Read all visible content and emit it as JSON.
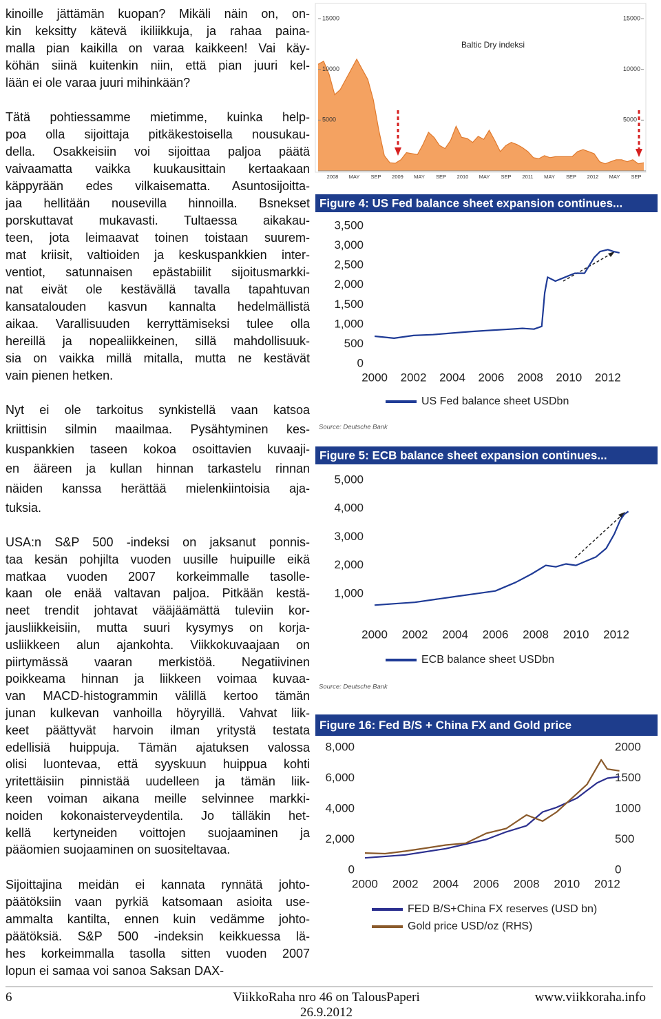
{
  "paragraphs": [
    {
      "lines": [
        "kinoille jättämän kuopan? Mikäli näin on, on-",
        "kin keksitty kätevä ikiliikkuja, ja rahaa paina-",
        "malla pian kaikilla on varaa kaikkeen! Vai käy-",
        "köhän siinä kuitenkin niin, että pian juuri kel-",
        "lään ei ole varaa juuri mihinkään?"
      ]
    },
    {
      "lines": [
        "Tätä pohtiessamme mietimme, kuinka help-",
        "poa olla sijoittaja pitkäkestoisella nousukau-",
        "della. Osakkeisiin voi sijoittaa paljoa päätä",
        "vaivaamatta vaikka kuukausittain kertaakaan",
        "käppyrään edes vilkaisematta. Asuntosijoitta-",
        "jaa hellitään nousevilla hinnoilla. Bsnekset",
        "porskuttavat mukavasti. Tultaessa aikakau-",
        "teen, jota leimaavat toinen toistaan suurem-",
        "mat kriisit, valtioiden ja keskuspankkien inter-",
        "ventiot, satunnaisen epästabiilit sijoitusmarkki-",
        "nat eivät ole kestävällä tavalla tapahtuvan",
        "kansatalouden kasvun kannalta hedelmällistä",
        "aikaa. Varallisuuden kerryttämiseksi tulee olla",
        "hereillä ja nopealiikkeinen, sillä mahdollisuuk-",
        "sia on vaikka millä mitalla, mutta ne kestävät",
        "vain pienen hetken."
      ]
    },
    {
      "lines": [
        "Nyt ei ole tarkoitus synkistellä vaan katsoa",
        "kriittisin silmin maailmaa. Pysähtyminen kes-",
        "kuspankkien taseen kokoa osoittavien kuvaaji-",
        "en ääreen ja kullan hinnan tarkastelu rinnan",
        "näiden kanssa herättää mielenkiintoisia aja-",
        "tuksia."
      ]
    },
    {
      "lines": [
        "USA:n S&P 500 -indeksi on jaksanut ponnis-",
        "taa kesän pohjilta vuoden uusille huipuille eikä",
        "matkaa vuoden 2007 korkeimmalle tasolle-",
        "kaan ole enää valtavan paljoa. Pitkään kestä-",
        "neet trendit johtavat vääjäämättä tuleviin kor-",
        "jausliikkeisiin, mutta suuri kysymys on korja-",
        "usliikkeen alun ajankohta. Viikkokuvaajaan on",
        "piirtymässä vaaran merkistöä. Negatiivinen",
        "poikkeama hinnan ja liikkeen voimaa kuvaa-",
        "van MACD-histogrammin välillä kertoo tämän",
        "junan kulkevan vanhoilla höyryillä. Vahvat liik-",
        "keet päättyvät harvoin ilman yritystä testata",
        "edellisiä huippuja. Tämän ajatuksen valossa",
        "olisi luontevaa, että syyskuun huippua kohti",
        "yritettäisiin pinnistää uudelleen ja tämän liik-",
        "keen voiman aikana meille selvinnee markki-",
        "noiden kokonaisterveydentila. Jo tälläkin het-",
        "kellä kertyneiden voittojen suojaaminen ja",
        "pääomien suojaaminen on suositeltavaa."
      ]
    },
    {
      "lines": [
        "Sijoittajina meidän ei kannata rynnätä johto-",
        "päätöksiin vaan pyrkiä katsomaan asioita use-",
        "ammalta kantilta, ennen kuin vedämme johto-",
        "päätöksiä. S&P 500 -indeksin keikkuessa lä-",
        "hes korkeimmalla tasolla sitten vuoden 2007",
        "lopun ei samaa voi sanoa Saksan DAX-"
      ]
    }
  ],
  "figures": [
    {
      "type": "area",
      "title": "Baltic Dry indeksi",
      "color": "#f4a261",
      "ylim": [
        0,
        15000
      ],
      "yticks": [
        5000,
        10000,
        15000
      ],
      "y2lim": [
        0,
        15000
      ],
      "y2ticks": [
        5000,
        10000,
        15000
      ],
      "x_labels": [
        "2008",
        "MAY",
        "SEP",
        "2009",
        "MAY",
        "SEP",
        "2010",
        "MAY",
        "SEP",
        "2011",
        "MAY",
        "SEP",
        "2012",
        "MAY",
        "SEP"
      ],
      "values": [
        10500,
        10800,
        9500,
        7500,
        8000,
        9000,
        10000,
        11000,
        10000,
        9000,
        7000,
        4000,
        1500,
        800,
        750,
        1100,
        1800,
        1700,
        1600,
        2600,
        3800,
        3300,
        2500,
        2200,
        3000,
        4400,
        3300,
        3200,
        2800,
        3400,
        3100,
        4000,
        3000,
        1900,
        2500,
        2800,
        2600,
        2300,
        1900,
        1300,
        1200,
        1500,
        1300,
        1400,
        1400,
        1400,
        1400,
        1900,
        2100,
        1900,
        1700,
        900,
        700,
        900,
        1100,
        1100,
        900,
        1100,
        700,
        800
      ]
    },
    {
      "type": "line",
      "title": "Figure 4: US Fed balance sheet expansion continues...",
      "source": "Source: Deutsche Bank",
      "xlim": [
        1999.5,
        2013
      ],
      "xticks": [
        2000,
        2002,
        2004,
        2006,
        2008,
        2010,
        2012
      ],
      "ylim": [
        0,
        3500
      ],
      "yticks": [
        0,
        500,
        {
          "value": 1000,
          "label": "1,000"
        },
        {
          "value": 1500,
          "label": "1,500"
        },
        {
          "value": 2000,
          "label": "2,000"
        },
        {
          "value": 2500,
          "label": "2,500"
        },
        {
          "value": 3000,
          "label": "3,000"
        },
        {
          "value": 3500,
          "label": "3,500"
        }
      ],
      "series": [
        {
          "name": "US Fed balance sheet USDbn",
          "color": "#1f3b96",
          "x": [
            2000,
            2001,
            2002,
            2003,
            2004,
            2005,
            2006,
            2007,
            2007.6,
            2008.2,
            2008.6,
            2008.75,
            2008.9,
            2009.3,
            2009.8,
            2010.3,
            2010.8,
            2011.3,
            2011.6,
            2012,
            2012.3,
            2012.6
          ],
          "values": [
            700,
            650,
            720,
            740,
            780,
            820,
            850,
            880,
            900,
            880,
            950,
            1800,
            2200,
            2100,
            2200,
            2300,
            2300,
            2700,
            2850,
            2900,
            2850,
            2820
          ]
        }
      ]
    },
    {
      "type": "line",
      "title": "Figure 5: ECB balance sheet expansion continues...",
      "source": "Source: Deutsche Bank",
      "xlim": [
        1999.5,
        2013
      ],
      "xticks": [
        2000,
        2002,
        2004,
        2006,
        2008,
        2010,
        2012
      ],
      "ylim": [
        0,
        5000
      ],
      "yticks": [
        {
          "value": 1000,
          "label": "1,000"
        },
        {
          "value": 2000,
          "label": "2,000"
        },
        {
          "value": 3000,
          "label": "3,000"
        },
        {
          "value": 4000,
          "label": "4,000"
        },
        {
          "value": 5000,
          "label": "5,000"
        }
      ],
      "series": [
        {
          "name": "ECB balance sheet USDbn",
          "color": "#1f3b96",
          "x": [
            2000,
            2001,
            2002,
            2003,
            2004,
            2005,
            2006,
            2007,
            2007.8,
            2008.5,
            2009,
            2009.5,
            2010,
            2010.5,
            2011,
            2011.5,
            2011.9,
            2012.2,
            2012.4,
            2012.6
          ],
          "values": [
            600,
            650,
            700,
            800,
            900,
            1000,
            1100,
            1400,
            1700,
            2000,
            1950,
            2050,
            2000,
            2150,
            2300,
            2600,
            3100,
            3600,
            3800,
            3900
          ]
        }
      ]
    },
    {
      "type": "line",
      "title": "Figure 16: Fed B/S + China FX and Gold price",
      "xlim": [
        1999.5,
        2013
      ],
      "xticks": [
        2000,
        2002,
        2004,
        2006,
        2008,
        2010,
        2012
      ],
      "ylim": [
        0,
        8000
      ],
      "yticks": [
        0,
        {
          "value": 2000,
          "label": "2,000"
        },
        {
          "value": 4000,
          "label": "4,000"
        },
        {
          "value": 6000,
          "label": "6,000"
        },
        {
          "value": 8000,
          "label": "8,000"
        }
      ],
      "y2lim": [
        0,
        2000
      ],
      "y2ticks": [
        0,
        500,
        1000,
        1500,
        2000
      ],
      "series": [
        {
          "name": "FED B/S+China FX reserves (USD bn)",
          "color": "#2b2f8f",
          "x": [
            2000,
            2002,
            2004,
            2006,
            2007,
            2008,
            2008.8,
            2009.5,
            2010,
            2010.5,
            2011,
            2011.5,
            2012,
            2012.6
          ],
          "values": [
            800,
            1000,
            1400,
            2000,
            2500,
            2900,
            3800,
            4100,
            4400,
            4700,
            5200,
            5700,
            6000,
            6100
          ]
        },
        {
          "name": "Gold price USD/oz (RHS)",
          "color": "#8a5a2b",
          "axis": "y2",
          "x": [
            2000,
            2001,
            2002,
            2003,
            2004,
            2005,
            2006,
            2007,
            2008,
            2008.8,
            2009.5,
            2010,
            2010.5,
            2011,
            2011.7,
            2012,
            2012.6
          ],
          "values": [
            280,
            270,
            310,
            360,
            410,
            440,
            600,
            680,
            900,
            800,
            950,
            1100,
            1250,
            1400,
            1800,
            1650,
            1620
          ]
        }
      ]
    }
  ],
  "footer": {
    "page": "6",
    "publication": "ViikkoRaha nro 46 on TalousPaperi",
    "date": "26.9.2012",
    "website": "www.viikkoraha.info"
  }
}
